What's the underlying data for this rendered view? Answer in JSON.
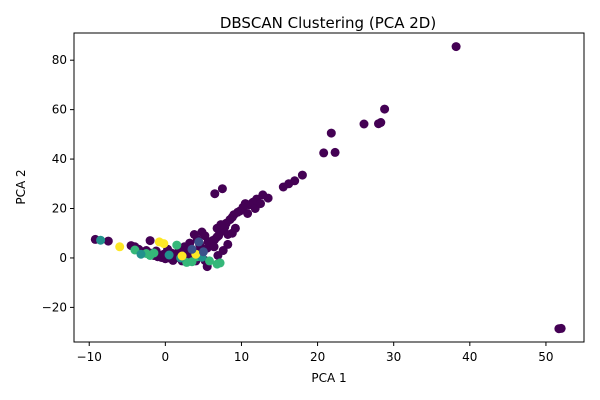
{
  "chart_data": {
    "type": "scatter",
    "title": "DBSCAN Clustering (PCA 2D)",
    "xlabel": "PCA 1",
    "ylabel": "PCA 2",
    "xlim": [
      -12,
      55
    ],
    "ylim": [
      -34,
      91
    ],
    "xticks": [
      -10,
      0,
      10,
      20,
      30,
      40,
      50
    ],
    "yticks": [
      -20,
      0,
      20,
      40,
      60,
      80
    ],
    "xtick_labels": [
      "−10",
      "0",
      "10",
      "20",
      "30",
      "40",
      "50"
    ],
    "ytick_labels": [
      "−20",
      "0",
      "20",
      "40",
      "60",
      "80"
    ],
    "grid": false,
    "colors": {
      "cluster_noise": "#440154",
      "cluster_a": "#31688e",
      "cluster_b": "#35b779",
      "cluster_c": "#21918c",
      "cluster_d": "#fde725",
      "cluster_e": "#3b528b"
    },
    "series": [
      {
        "color_key": "cluster_noise",
        "points": [
          [
            38.2,
            85.5
          ],
          [
            28.8,
            60.2
          ],
          [
            21.8,
            50.5
          ],
          [
            26.1,
            54.2
          ],
          [
            28.0,
            54.3
          ],
          [
            28.3,
            54.8
          ],
          [
            20.8,
            42.5
          ],
          [
            22.3,
            42.7
          ],
          [
            18.0,
            33.5
          ],
          [
            17.0,
            31.2
          ],
          [
            16.2,
            30.0
          ],
          [
            15.5,
            28.7
          ],
          [
            52.0,
            -28.5
          ],
          [
            51.7,
            -28.6
          ],
          [
            13.5,
            24.2
          ],
          [
            12.8,
            25.5
          ],
          [
            12.0,
            23.8
          ],
          [
            11.5,
            22.5
          ],
          [
            11.0,
            21.5
          ],
          [
            10.5,
            22.0
          ],
          [
            10.2,
            20.5
          ],
          [
            9.8,
            19.0
          ],
          [
            9.5,
            18.5
          ],
          [
            9.0,
            17.5
          ],
          [
            8.8,
            16.5
          ],
          [
            8.5,
            15.5
          ],
          [
            8.0,
            14.0
          ],
          [
            7.8,
            12.5
          ],
          [
            7.5,
            11.0
          ],
          [
            7.2,
            10.5
          ],
          [
            7.0,
            9.0
          ],
          [
            6.8,
            8.5
          ],
          [
            6.5,
            7.5
          ],
          [
            6.2,
            7.0
          ],
          [
            6.0,
            5.5
          ],
          [
            5.8,
            5.0
          ],
          [
            5.5,
            4.0
          ],
          [
            5.0,
            3.5
          ],
          [
            4.5,
            3.0
          ],
          [
            4.0,
            2.5
          ],
          [
            3.5,
            2.0
          ],
          [
            3.0,
            1.5
          ],
          [
            2.5,
            1.0
          ],
          [
            2.0,
            0.5
          ],
          [
            1.5,
            0.2
          ],
          [
            1.0,
            -0.2
          ],
          [
            0.5,
            0.0
          ],
          [
            0.0,
            -0.3
          ],
          [
            -0.5,
            0.2
          ],
          [
            -1.0,
            0.5
          ],
          [
            -1.5,
            1.0
          ],
          [
            -2.0,
            2.0
          ],
          [
            -2.5,
            3.0
          ],
          [
            -3.0,
            2.5
          ],
          [
            -3.5,
            3.5
          ],
          [
            -4.0,
            4.5
          ],
          [
            -4.5,
            5.0
          ],
          [
            -7.5,
            6.8
          ],
          [
            -9.2,
            7.5
          ],
          [
            -2.0,
            7.0
          ],
          [
            6.5,
            26.0
          ],
          [
            7.5,
            28.0
          ],
          [
            5.5,
            -3.5
          ],
          [
            8.2,
            9.5
          ],
          [
            8.8,
            10.0
          ],
          [
            4.2,
            7.5
          ],
          [
            3.8,
            9.5
          ],
          [
            4.8,
            10.5
          ],
          [
            5.2,
            9.0
          ],
          [
            2.5,
            4.5
          ],
          [
            3.2,
            6.0
          ],
          [
            1.8,
            3.0
          ],
          [
            0.8,
            2.0
          ],
          [
            -0.2,
            1.5
          ],
          [
            6.8,
            12.0
          ],
          [
            7.3,
            13.5
          ],
          [
            9.2,
            12.0
          ],
          [
            10.8,
            18.0
          ],
          [
            11.8,
            20.0
          ],
          [
            12.5,
            22.0
          ],
          [
            8.2,
            5.5
          ],
          [
            7.6,
            3.0
          ],
          [
            6.9,
            1.0
          ],
          [
            5.2,
            -1.0
          ],
          [
            4.0,
            -1.2
          ],
          [
            2.2,
            -1.2
          ],
          [
            1.0,
            -1.0
          ],
          [
            3.0,
            3.5
          ],
          [
            4.5,
            5.5
          ],
          [
            5.6,
            6.5
          ],
          [
            6.4,
            4.5
          ],
          [
            3.6,
            0.8
          ],
          [
            -1.2,
            2.8
          ],
          [
            0.3,
            3.5
          ]
        ]
      },
      {
        "color_key": "cluster_b",
        "points": [
          [
            -4.0,
            3.2
          ],
          [
            -2.5,
            1.8
          ],
          [
            -1.5,
            2.0
          ],
          [
            1.5,
            5.2
          ],
          [
            6.8,
            -2.5
          ],
          [
            7.2,
            -2.0
          ],
          [
            2.8,
            -1.8
          ],
          [
            3.5,
            -1.5
          ],
          [
            -2.0,
            1.0
          ],
          [
            4.2,
            0.5
          ],
          [
            5.8,
            -1.2
          ]
        ]
      },
      {
        "color_key": "cluster_c",
        "points": [
          [
            -8.5,
            7.2
          ],
          [
            -3.2,
            1.5
          ],
          [
            0.5,
            1.2
          ],
          [
            2.0,
            0.0
          ],
          [
            4.8,
            0.3
          ]
        ]
      },
      {
        "color_key": "cluster_d",
        "points": [
          [
            -6.0,
            4.5
          ],
          [
            -0.8,
            6.5
          ],
          [
            4.0,
            1.5
          ],
          [
            2.2,
            0.8
          ],
          [
            -0.2,
            5.8
          ]
        ]
      },
      {
        "color_key": "cluster_e",
        "points": [
          [
            3.5,
            3.5
          ],
          [
            5.0,
            2.5
          ],
          [
            4.4,
            6.5
          ]
        ]
      }
    ]
  }
}
